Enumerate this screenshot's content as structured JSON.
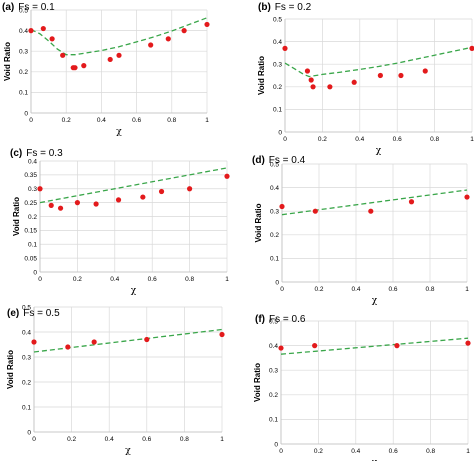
{
  "colors": {
    "points": "#e31a1c",
    "fit_line": "#3aa64a",
    "grid": "#d9d9d9",
    "axis": "#bfbfbf"
  },
  "chart_data": [
    {
      "type": "scatter",
      "panel": "(a)",
      "title": "Fs = 0.1",
      "xlabel": "χ",
      "ylabel": "Void Ratio",
      "xlim": [
        0,
        1
      ],
      "ylim": [
        0,
        0.5
      ],
      "xticks": [
        "0",
        "0.2",
        "0.4",
        "0.6",
        "0.8",
        "1"
      ],
      "yticks": [
        "0",
        "0.1",
        "0.2",
        "0.3",
        "0.4",
        "0.5"
      ],
      "grid": true,
      "points": {
        "x": [
          0,
          0.07,
          0.12,
          0.18,
          0.24,
          0.25,
          0.3,
          0.45,
          0.5,
          0.68,
          0.78,
          0.87,
          1.0
        ],
        "y": [
          0.4,
          0.41,
          0.36,
          0.28,
          0.22,
          0.22,
          0.23,
          0.26,
          0.28,
          0.33,
          0.36,
          0.4,
          0.43
        ]
      },
      "fit_line": {
        "x": [
          0,
          0.05,
          0.1,
          0.15,
          0.2,
          0.25,
          0.3,
          0.4,
          0.5,
          0.6,
          0.7,
          0.8,
          0.9,
          1.0
        ],
        "y": [
          0.405,
          0.385,
          0.35,
          0.31,
          0.283,
          0.283,
          0.29,
          0.303,
          0.322,
          0.345,
          0.37,
          0.398,
          0.43,
          0.462
        ]
      }
    },
    {
      "type": "scatter",
      "panel": "(b)",
      "title": "Fs = 0.2",
      "xlabel": "χ",
      "ylabel": "Void Ratio",
      "xlim": [
        0,
        1
      ],
      "ylim": [
        0,
        0.5
      ],
      "xticks": [
        "0",
        "0.2",
        "0.4",
        "0.6",
        "0.8",
        "1"
      ],
      "yticks": [
        "0",
        "0.1",
        "0.2",
        "0.3",
        "0.4",
        "0.5"
      ],
      "grid": true,
      "points": {
        "x": [
          0,
          0.12,
          0.14,
          0.15,
          0.24,
          0.37,
          0.51,
          0.62,
          0.75,
          1.0
        ],
        "y": [
          0.37,
          0.27,
          0.23,
          0.2,
          0.2,
          0.22,
          0.25,
          0.25,
          0.27,
          0.37
        ]
      },
      "fit_line": {
        "x": [
          0,
          0.05,
          0.1,
          0.13,
          0.2,
          0.3,
          0.4,
          0.5,
          0.6,
          0.7,
          0.8,
          0.9,
          1.0
        ],
        "y": [
          0.305,
          0.28,
          0.255,
          0.245,
          0.255,
          0.265,
          0.277,
          0.29,
          0.305,
          0.322,
          0.34,
          0.357,
          0.375
        ]
      }
    },
    {
      "type": "scatter",
      "panel": "(c)",
      "title": "Fs = 0.3",
      "xlabel": "χ",
      "ylabel": "Void Ratio",
      "xlim": [
        0,
        1
      ],
      "ylim": [
        0,
        0.4
      ],
      "xticks": [
        "0",
        "0.2",
        "0.4",
        "0.6",
        "0.8",
        "1"
      ],
      "yticks": [
        "0",
        "0.05",
        "0.1",
        "0.15",
        "0.2",
        "0.25",
        "0.3",
        "0.35",
        "0.4"
      ],
      "grid": true,
      "points": {
        "x": [
          0,
          0.06,
          0.11,
          0.2,
          0.3,
          0.42,
          0.55,
          0.65,
          0.8,
          1.0
        ],
        "y": [
          0.3,
          0.24,
          0.23,
          0.25,
          0.245,
          0.26,
          0.27,
          0.29,
          0.3,
          0.345
        ]
      },
      "fit_line": {
        "x": [
          0,
          1
        ],
        "y": [
          0.25,
          0.375
        ]
      }
    },
    {
      "type": "scatter",
      "panel": "(d)",
      "title": "Fs = 0.4",
      "xlabel": "χ",
      "ylabel": "Void Ratio",
      "xlim": [
        0,
        1
      ],
      "ylim": [
        0,
        0.5
      ],
      "xticks": [
        "0",
        "0.2",
        "0.4",
        "0.6",
        "0.8",
        "1"
      ],
      "yticks": [
        "0",
        "0.1",
        "0.2",
        "0.3",
        "0.4",
        "0.5"
      ],
      "grid": true,
      "points": {
        "x": [
          0,
          0.18,
          0.48,
          0.7,
          1.0
        ],
        "y": [
          0.32,
          0.3,
          0.3,
          0.34,
          0.36
        ]
      },
      "fit_line": {
        "x": [
          0,
          1
        ],
        "y": [
          0.285,
          0.39
        ]
      }
    },
    {
      "type": "scatter",
      "panel": "(e)",
      "title": "Fs = 0.5",
      "xlabel": "χ",
      "ylabel": "Void Ratio",
      "xlim": [
        0,
        1
      ],
      "ylim": [
        0,
        0.5
      ],
      "xticks": [
        "0",
        "0.2",
        "0.4",
        "0.6",
        "0.8",
        "1"
      ],
      "yticks": [
        "0",
        "0.1",
        "0.2",
        "0.3",
        "0.4",
        "0.5"
      ],
      "grid": true,
      "points": {
        "x": [
          0,
          0.18,
          0.32,
          0.6,
          1.0
        ],
        "y": [
          0.36,
          0.34,
          0.36,
          0.37,
          0.39
        ]
      },
      "fit_line": {
        "x": [
          0,
          1
        ],
        "y": [
          0.32,
          0.41
        ]
      }
    },
    {
      "type": "scatter",
      "panel": "(f)",
      "title": "Fs = 0.6",
      "xlabel": "χ",
      "ylabel": "Void Ratio",
      "xlim": [
        0,
        1
      ],
      "ylim": [
        0,
        0.5
      ],
      "xticks": [
        "0",
        "0.2",
        "0.4",
        "0.6",
        "0.8",
        "1"
      ],
      "yticks": [
        "0",
        "0.1",
        "0.2",
        "0.3",
        "0.4",
        "0.5"
      ],
      "grid": true,
      "points": {
        "x": [
          0,
          0.18,
          0.62,
          1.0
        ],
        "y": [
          0.39,
          0.4,
          0.4,
          0.41
        ]
      },
      "fit_line": {
        "x": [
          0,
          1
        ],
        "y": [
          0.365,
          0.43
        ]
      }
    }
  ]
}
